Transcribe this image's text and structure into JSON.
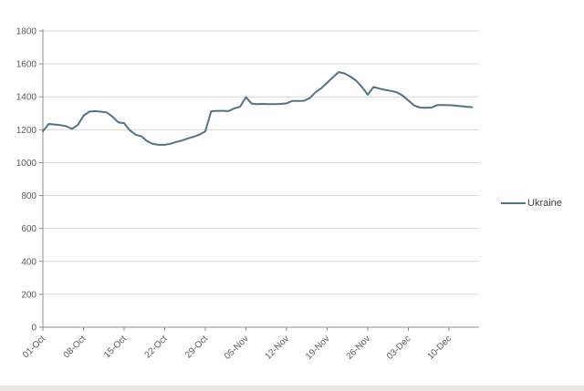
{
  "chart": {
    "background": "#ffffff",
    "axis_color": "#8c8c8c",
    "gridline_color": "#d9d9d9",
    "tick_label_color": "#595959",
    "legend_text_color": "#404040",
    "series_color": "#527386"
  },
  "legend": {
    "label": "Ukraine"
  },
  "chart_data": {
    "type": "line",
    "title": "",
    "xlabel": "",
    "ylabel": "",
    "x_tick_labels": [
      "01-Oct",
      "08-Oct",
      "15-Oct",
      "22-Oct",
      "29-Oct",
      "05-Nov",
      "12-Nov",
      "19-Nov",
      "26-Nov",
      "03-Dec",
      "10-Dec"
    ],
    "x_tick_interval_days": 7,
    "x_label_rotation_deg": 45,
    "y_ticks": [
      0,
      200,
      400,
      600,
      800,
      1000,
      1200,
      1400,
      1600,
      1800
    ],
    "ylim": [
      0,
      1800
    ],
    "grid": "horizontal",
    "legend_position": "right-middle",
    "series": [
      {
        "name": "Ukraine",
        "color": "#527386",
        "point_interval": "daily",
        "first_point_label": "01-Oct",
        "values": [
          1190,
          1235,
          1232,
          1228,
          1222,
          1205,
          1228,
          1285,
          1310,
          1313,
          1310,
          1305,
          1280,
          1245,
          1240,
          1196,
          1170,
          1160,
          1130,
          1113,
          1108,
          1108,
          1115,
          1126,
          1135,
          1147,
          1158,
          1170,
          1190,
          1312,
          1315,
          1315,
          1313,
          1330,
          1340,
          1398,
          1358,
          1355,
          1357,
          1355,
          1355,
          1357,
          1360,
          1375,
          1375,
          1376,
          1392,
          1428,
          1452,
          1485,
          1520,
          1550,
          1542,
          1523,
          1498,
          1460,
          1413,
          1460,
          1450,
          1442,
          1436,
          1428,
          1408,
          1378,
          1347,
          1335,
          1333,
          1335,
          1350,
          1350,
          1349,
          1347,
          1343,
          1340,
          1337
        ]
      }
    ]
  }
}
